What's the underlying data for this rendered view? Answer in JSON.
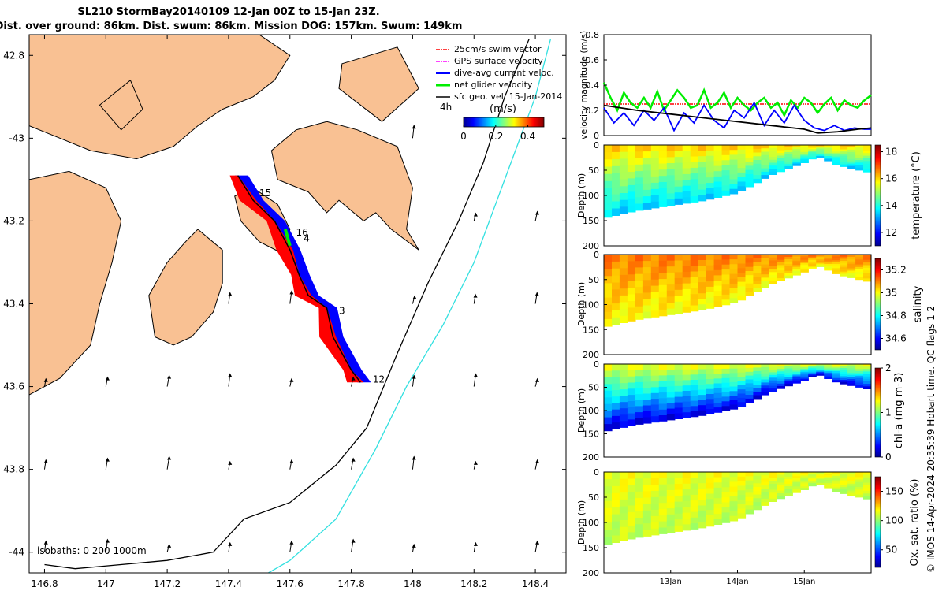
{
  "title": {
    "line1": "SL210 StormBay20140109 12-Jan 00Z to 15-Jan 23Z.",
    "line2": "Dist. over ground: 86km. Dist. swum: 86km. Mission DOG: 157km. Swum: 149km"
  },
  "credit": "© IMOS 14-Apr-2024 20:35:39 Hobart time. QC flags 1  2",
  "colors": {
    "land": "#f9c193",
    "swath_red": "#ff0000",
    "swath_blue": "#0000ff",
    "net_green": "#00ee00",
    "isobath_200": "#000000",
    "isobath_1000": "#33e0e0",
    "vector": "#000000"
  },
  "chart_data": [
    {
      "type": "map",
      "xlim": [
        146.75,
        148.5
      ],
      "ylim": [
        -44.05,
        -42.75
      ],
      "x_ticks": [
        146.8,
        147,
        147.2,
        147.4,
        147.6,
        147.8,
        148,
        148.2,
        148.4
      ],
      "x_tick_labels": [
        "146.8",
        "147",
        "147.2",
        "147.4",
        "147.6",
        "147.8",
        "148",
        "148.2",
        "148.4"
      ],
      "y_ticks": [
        -42.8,
        -43,
        -43.2,
        -43.4,
        -43.6,
        -43.8,
        -44
      ],
      "y_tick_labels": [
        "42.8",
        "-43",
        "43.2",
        "43.4",
        "43.6",
        "43.8",
        "-44"
      ],
      "legend": {
        "placement": "top-right",
        "entries": [
          "25cm/s swim vector",
          "GPS surface velocity",
          "dive-avg current veloc.",
          "net glider velocity",
          "sfc geo. vel. 15-Jan-2014"
        ],
        "colors": [
          "#ff0000",
          "#ff00ff",
          "#0000ff",
          "#00ee00",
          "#000000"
        ]
      },
      "colorbar": {
        "title": "(m/s)",
        "interval_label": "4h",
        "ticks": [
          "0",
          "0.2",
          "0.4"
        ],
        "range": [
          0,
          0.5
        ]
      },
      "isobath_label": "isobaths: 0   200  1000m",
      "day_labels": [
        {
          "text": "15",
          "lon": 147.5,
          "lat": -43.14
        },
        {
          "text": "16",
          "lon": 147.62,
          "lat": -43.235
        },
        {
          "text": "4",
          "lon": 147.645,
          "lat": -43.25
        },
        {
          "text": "3",
          "lon": 147.76,
          "lat": -43.425
        },
        {
          "text": "12",
          "lon": 147.87,
          "lat": -43.59
        }
      ],
      "track": [
        [
          147.43,
          -43.09
        ],
        [
          147.48,
          -43.15
        ],
        [
          147.55,
          -43.2
        ],
        [
          147.6,
          -43.27
        ],
        [
          147.63,
          -43.33
        ],
        [
          147.66,
          -43.38
        ],
        [
          147.72,
          -43.41
        ],
        [
          147.74,
          -43.48
        ],
        [
          147.8,
          -43.56
        ],
        [
          147.83,
          -43.59
        ]
      ],
      "isobath_200": [
        [
          146.8,
          -44.03
        ],
        [
          146.9,
          -44.04
        ],
        [
          147.2,
          -44.02
        ],
        [
          147.35,
          -44.0
        ],
        [
          147.45,
          -43.92
        ],
        [
          147.6,
          -43.88
        ],
        [
          147.75,
          -43.79
        ],
        [
          147.85,
          -43.7
        ],
        [
          147.95,
          -43.52
        ],
        [
          148.05,
          -43.35
        ],
        [
          148.15,
          -43.2
        ],
        [
          148.23,
          -43.06
        ],
        [
          148.3,
          -42.9
        ],
        [
          148.38,
          -42.76
        ]
      ],
      "isobath_1000": [
        [
          147.53,
          -44.05
        ],
        [
          147.6,
          -44.02
        ],
        [
          147.75,
          -43.92
        ],
        [
          147.88,
          -43.75
        ],
        [
          147.98,
          -43.6
        ],
        [
          148.1,
          -43.45
        ],
        [
          148.2,
          -43.3
        ],
        [
          148.3,
          -43.1
        ],
        [
          148.4,
          -42.9
        ],
        [
          148.45,
          -42.76
        ]
      ],
      "land": {
        "north": [
          [
            146.75,
            -42.75
          ],
          [
            147.5,
            -42.75
          ],
          [
            147.6,
            -42.8
          ],
          [
            147.55,
            -42.86
          ],
          [
            147.48,
            -42.9
          ],
          [
            147.38,
            -42.93
          ],
          [
            147.3,
            -42.97
          ],
          [
            147.22,
            -43.02
          ],
          [
            147.1,
            -43.05
          ],
          [
            146.95,
            -43.03
          ],
          [
            146.85,
            -43.0
          ],
          [
            146.75,
            -42.97
          ]
        ],
        "east_north": [
          [
            147.77,
            -42.82
          ],
          [
            147.95,
            -42.78
          ],
          [
            148.02,
            -42.88
          ],
          [
            147.96,
            -42.92
          ],
          [
            147.9,
            -42.96
          ],
          [
            147.83,
            -42.92
          ],
          [
            147.76,
            -42.88
          ]
        ],
        "forestier": [
          [
            147.62,
            -42.98
          ],
          [
            147.72,
            -42.96
          ],
          [
            147.82,
            -42.98
          ],
          [
            147.95,
            -43.02
          ],
          [
            148.0,
            -43.12
          ],
          [
            147.98,
            -43.22
          ],
          [
            148.02,
            -43.27
          ],
          [
            147.93,
            -43.22
          ],
          [
            147.88,
            -43.18
          ],
          [
            147.84,
            -43.2
          ],
          [
            147.76,
            -43.15
          ],
          [
            147.72,
            -43.18
          ],
          [
            147.66,
            -43.13
          ],
          [
            147.56,
            -43.1
          ],
          [
            147.54,
            -43.03
          ]
        ],
        "east_peninsula": [
          [
            147.48,
            -43.12
          ],
          [
            147.56,
            -43.16
          ],
          [
            147.6,
            -43.22
          ],
          [
            147.58,
            -43.28
          ],
          [
            147.5,
            -43.25
          ],
          [
            147.44,
            -43.2
          ],
          [
            147.42,
            -43.14
          ]
        ],
        "south_island": [
          [
            147.3,
            -43.22
          ],
          [
            147.38,
            -43.27
          ],
          [
            147.38,
            -43.35
          ],
          [
            147.35,
            -43.42
          ],
          [
            147.28,
            -43.48
          ],
          [
            147.22,
            -43.5
          ],
          [
            147.16,
            -43.48
          ],
          [
            147.14,
            -43.38
          ],
          [
            147.2,
            -43.3
          ],
          [
            147.26,
            -43.25
          ]
        ],
        "southwest": [
          [
            146.75,
            -43.1
          ],
          [
            146.88,
            -43.08
          ],
          [
            147.0,
            -43.12
          ],
          [
            147.05,
            -43.2
          ],
          [
            147.02,
            -43.3
          ],
          [
            146.98,
            -43.4
          ],
          [
            146.95,
            -43.5
          ],
          [
            146.85,
            -43.58
          ],
          [
            146.75,
            -43.62
          ]
        ],
        "northwest_lobe": [
          [
            146.98,
            -42.92
          ],
          [
            147.08,
            -42.86
          ],
          [
            147.12,
            -42.93
          ],
          [
            147.05,
            -42.98
          ]
        ]
      },
      "vector_grid": {
        "lons": [
          146.8,
          147.0,
          147.2,
          147.4,
          147.6,
          147.8,
          148.0,
          148.2,
          148.4
        ],
        "lats": [
          -43.6,
          -43.8,
          -44.0
        ],
        "extra_points": [
          [
            148.0,
            -43.0
          ],
          [
            148.2,
            -43.2
          ],
          [
            148.4,
            -43.2
          ],
          [
            147.4,
            -43.4
          ],
          [
            147.6,
            -43.4
          ],
          [
            148.0,
            -43.4
          ],
          [
            148.2,
            -43.4
          ],
          [
            148.4,
            -43.4
          ]
        ],
        "u": 0.15,
        "v": 0.35
      }
    },
    {
      "type": "line",
      "ylabel": "velocity magnitude (m/s)",
      "ylim": [
        0,
        0.8
      ],
      "y_ticks": [
        "0",
        "0.2",
        "0.4",
        "0.6",
        "0.8"
      ],
      "xlim": [
        0,
        4
      ],
      "series": [
        {
          "name": "swim speed (red dashed)",
          "color": "#ff0000",
          "x": [
            0,
            4
          ],
          "y": [
            0.25,
            0.25
          ]
        },
        {
          "name": "net glider velocity",
          "color": "#00ee00",
          "x": [
            0,
            0.1,
            0.2,
            0.3,
            0.4,
            0.5,
            0.6,
            0.7,
            0.8,
            0.9,
            1.0,
            1.1,
            1.2,
            1.3,
            1.4,
            1.5,
            1.6,
            1.7,
            1.8,
            1.9,
            2.0,
            2.1,
            2.2,
            2.3,
            2.4,
            2.5,
            2.6,
            2.7,
            2.8,
            2.9,
            3.0,
            3.1,
            3.2,
            3.3,
            3.4,
            3.5,
            3.6,
            3.7,
            3.8,
            3.9,
            4.0
          ],
          "y": [
            0.42,
            0.3,
            0.2,
            0.34,
            0.26,
            0.22,
            0.3,
            0.22,
            0.35,
            0.2,
            0.28,
            0.36,
            0.3,
            0.22,
            0.24,
            0.36,
            0.22,
            0.26,
            0.34,
            0.22,
            0.3,
            0.24,
            0.2,
            0.26,
            0.3,
            0.22,
            0.26,
            0.16,
            0.28,
            0.22,
            0.3,
            0.26,
            0.18,
            0.25,
            0.3,
            0.2,
            0.28,
            0.24,
            0.22,
            0.28,
            0.32
          ]
        },
        {
          "name": "dive-avg current",
          "color": "#0000ff",
          "x": [
            0,
            0.15,
            0.3,
            0.45,
            0.6,
            0.75,
            0.9,
            1.05,
            1.2,
            1.35,
            1.5,
            1.65,
            1.8,
            1.95,
            2.1,
            2.25,
            2.4,
            2.55,
            2.7,
            2.85,
            3.0,
            3.15,
            3.3,
            3.45,
            3.6,
            3.75,
            3.9,
            4.0
          ],
          "y": [
            0.22,
            0.1,
            0.18,
            0.08,
            0.2,
            0.12,
            0.22,
            0.04,
            0.18,
            0.1,
            0.24,
            0.12,
            0.06,
            0.2,
            0.14,
            0.26,
            0.08,
            0.2,
            0.1,
            0.24,
            0.12,
            0.06,
            0.04,
            0.08,
            0.04,
            0.06,
            0.05,
            0.05
          ]
        },
        {
          "name": "sfc geo. vel.",
          "color": "#000000",
          "x": [
            0,
            0.5,
            1.0,
            1.5,
            2.0,
            2.5,
            3.0,
            3.2,
            3.5,
            3.8,
            4.0
          ],
          "y": [
            0.24,
            0.2,
            0.17,
            0.14,
            0.11,
            0.08,
            0.05,
            0.02,
            0.03,
            0.05,
            0.06
          ]
        }
      ]
    },
    {
      "type": "heatmap",
      "ylabel": "Depth (m)",
      "ylim": [
        200,
        0
      ],
      "y_ticks": [
        "0",
        "50",
        "100",
        "150",
        "200"
      ],
      "colorbar_label": "temperature (°C)",
      "colorbar_ticks": [
        "12",
        "14",
        "16",
        "18"
      ],
      "colorbar_range": [
        11,
        18.5
      ],
      "bottom_profile": [
        [
          0,
          145
        ],
        [
          0.5,
          130
        ],
        [
          1.0,
          120
        ],
        [
          1.5,
          110
        ],
        [
          2.0,
          95
        ],
        [
          2.5,
          60
        ],
        [
          3.0,
          35
        ],
        [
          3.2,
          22
        ],
        [
          3.5,
          40
        ],
        [
          4.0,
          55
        ]
      ],
      "surface_value": 16,
      "deep_value": 13.5
    },
    {
      "type": "heatmap",
      "ylabel": "Depth (m)",
      "ylim": [
        200,
        0
      ],
      "y_ticks": [
        "0",
        "50",
        "100",
        "150",
        "200"
      ],
      "colorbar_label": "salinity",
      "colorbar_ticks": [
        "34.6",
        "34.8",
        "35",
        "35.2"
      ],
      "colorbar_range": [
        34.5,
        35.3
      ],
      "bottom_profile": [
        [
          0,
          145
        ],
        [
          0.5,
          130
        ],
        [
          1.0,
          120
        ],
        [
          1.5,
          110
        ],
        [
          2.0,
          95
        ],
        [
          2.5,
          60
        ],
        [
          3.0,
          35
        ],
        [
          3.2,
          22
        ],
        [
          3.5,
          40
        ],
        [
          4.0,
          55
        ]
      ],
      "surface_value": 35.1,
      "deep_value": 35.0
    },
    {
      "type": "heatmap",
      "ylabel": "Depth (m)",
      "ylim": [
        200,
        0
      ],
      "y_ticks": [
        "0",
        "50",
        "100",
        "150",
        "200"
      ],
      "colorbar_label": "chl-a (mg m-3)",
      "colorbar_ticks": [
        "0",
        "1",
        "2"
      ],
      "colorbar_range": [
        0,
        2
      ],
      "bottom_profile": [
        [
          0,
          145
        ],
        [
          0.5,
          130
        ],
        [
          1.0,
          120
        ],
        [
          1.5,
          110
        ],
        [
          2.0,
          95
        ],
        [
          2.5,
          60
        ],
        [
          3.0,
          35
        ],
        [
          3.2,
          22
        ],
        [
          3.5,
          40
        ],
        [
          4.0,
          55
        ]
      ],
      "surface_value": 1.2,
      "deep_value": 0.2
    },
    {
      "type": "heatmap",
      "ylabel": "Depth (m)",
      "ylim": [
        200,
        0
      ],
      "y_ticks": [
        "0",
        "50",
        "100",
        "150",
        "200"
      ],
      "x_tick_labels": [
        "13Jan",
        "14Jan",
        "15Jan"
      ],
      "x_tick_positions": [
        1,
        2,
        3
      ],
      "colorbar_label": "Ox. sat. ratio (%)",
      "colorbar_ticks": [
        "50",
        "100",
        "150"
      ],
      "colorbar_range": [
        20,
        175
      ],
      "bottom_profile": [
        [
          0,
          145
        ],
        [
          0.5,
          130
        ],
        [
          1.0,
          120
        ],
        [
          1.5,
          110
        ],
        [
          2.0,
          95
        ],
        [
          2.5,
          60
        ],
        [
          3.0,
          35
        ],
        [
          3.2,
          22
        ],
        [
          3.5,
          40
        ],
        [
          4.0,
          55
        ]
      ],
      "surface_value": 115,
      "deep_value": 108
    }
  ]
}
